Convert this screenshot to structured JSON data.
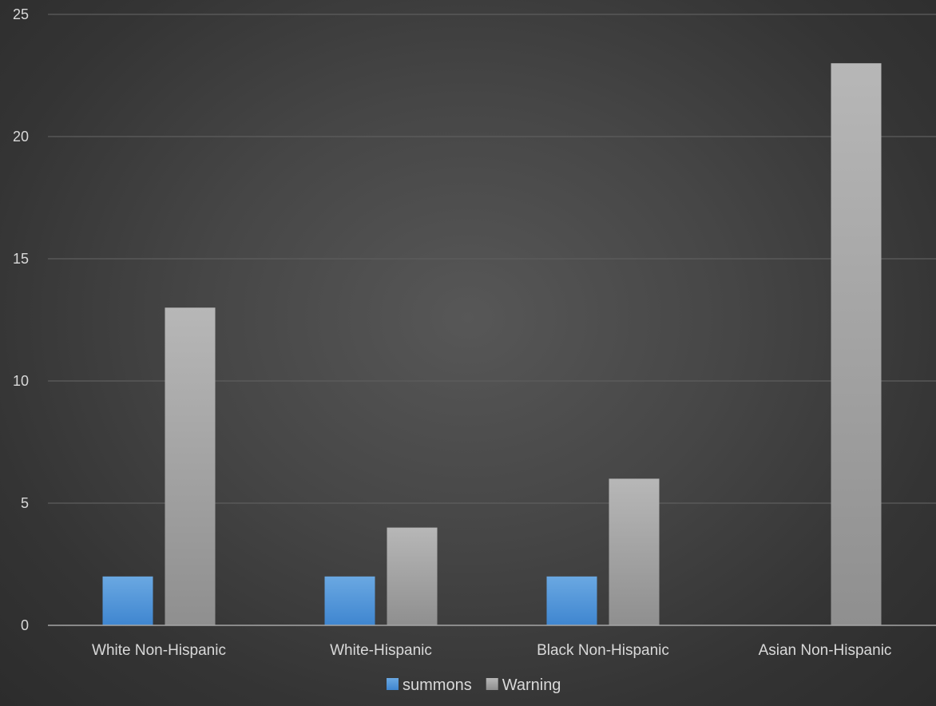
{
  "chart_data": {
    "type": "bar",
    "title": "",
    "xlabel": "",
    "ylabel": "",
    "categories": [
      "White Non-Hispanic",
      "White-Hispanic",
      "Black Non-Hispanic",
      "Asian Non-Hispanic"
    ],
    "series": [
      {
        "name": "summons",
        "values": [
          2,
          2,
          2,
          0
        ],
        "color": "#5b9bd5"
      },
      {
        "name": "Warning",
        "values": [
          13,
          4,
          6,
          23
        ],
        "color": "#a5a5a5"
      }
    ],
    "ylim": [
      0,
      25
    ],
    "yticks": [
      0,
      5,
      10,
      15,
      20,
      25
    ],
    "grid": true,
    "legend_position": "bottom"
  }
}
